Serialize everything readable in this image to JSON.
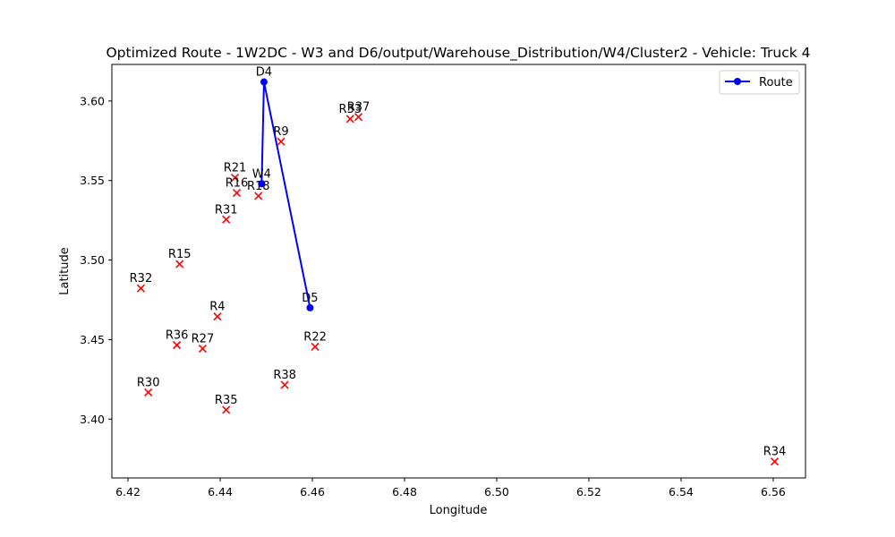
{
  "chart_data": {
    "type": "scatter",
    "title": "Optimized Route - 1W2DC - W3 and D6/output/Warehouse_Distribution/W4/Cluster2 - Vehicle: Truck 4",
    "xlabel": "Longitude",
    "ylabel": "Latitude",
    "xlim": [
      6.4165,
      6.567
    ],
    "ylim": [
      3.363,
      3.623
    ],
    "xticks": [
      "6.42",
      "6.44",
      "6.46",
      "6.48",
      "6.50",
      "6.52",
      "6.54",
      "6.56"
    ],
    "xtick_values": [
      6.42,
      6.44,
      6.46,
      6.48,
      6.5,
      6.52,
      6.54,
      6.56
    ],
    "yticks": [
      "3.40",
      "3.45",
      "3.50",
      "3.55",
      "3.60"
    ],
    "ytick_values": [
      3.4,
      3.45,
      3.5,
      3.55,
      3.6
    ],
    "grid": false,
    "legend": {
      "placement": "top-right",
      "entries": [
        "Route"
      ]
    },
    "colors": {
      "route": "#0000ff",
      "points": "#ff0000"
    },
    "route": {
      "name": "Route",
      "stops": [
        {
          "label": "W4",
          "x": 6.449,
          "y": 3.548
        },
        {
          "label": "D4",
          "x": 6.4495,
          "y": 3.612
        },
        {
          "label": "D5",
          "x": 6.4595,
          "y": 3.47
        }
      ]
    },
    "points": [
      {
        "label": "R37",
        "x": 6.47,
        "y": 3.59
      },
      {
        "label": "R33",
        "x": 6.4682,
        "y": 3.5888
      },
      {
        "label": "R9",
        "x": 6.4532,
        "y": 3.5745
      },
      {
        "label": "R21",
        "x": 6.4432,
        "y": 3.5518
      },
      {
        "label": "R16",
        "x": 6.4436,
        "y": 3.5422
      },
      {
        "label": "R18",
        "x": 6.4483,
        "y": 3.5403
      },
      {
        "label": "R31",
        "x": 6.4413,
        "y": 3.5255
      },
      {
        "label": "R15",
        "x": 6.4312,
        "y": 3.4975
      },
      {
        "label": "R32",
        "x": 6.4228,
        "y": 3.4822
      },
      {
        "label": "R4",
        "x": 6.4394,
        "y": 3.4645
      },
      {
        "label": "R36",
        "x": 6.4306,
        "y": 3.4465
      },
      {
        "label": "R27",
        "x": 6.4362,
        "y": 3.4443
      },
      {
        "label": "R22",
        "x": 6.4606,
        "y": 3.4455
      },
      {
        "label": "R38",
        "x": 6.454,
        "y": 3.4215
      },
      {
        "label": "R30",
        "x": 6.4244,
        "y": 3.4168
      },
      {
        "label": "R35",
        "x": 6.4413,
        "y": 3.4058
      },
      {
        "label": "R34",
        "x": 6.5603,
        "y": 3.3733
      }
    ]
  }
}
